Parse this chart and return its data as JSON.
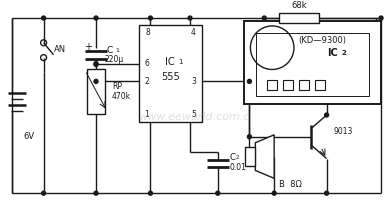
{
  "background": "#ffffff",
  "line_color": "#1a1a1a",
  "line_width": 1.0,
  "figsize": [
    3.89,
    2.11
  ],
  "dpi": 100,
  "watermark": "www.eeworld.com.c",
  "labels": {
    "AN": "AN",
    "6V": "6V",
    "C1": "C",
    "C1_sub": "1",
    "C1_val": "220μ",
    "C1_plus": "+",
    "RP": "RP",
    "RP_val": "470k",
    "IC1_label": "IC",
    "IC1_sub": "1",
    "IC1_chip": "555",
    "IC1_pin8": "8",
    "IC1_pin4": "4",
    "IC1_pin6": "6",
    "IC1_pin2": "2",
    "IC1_pin3": "3",
    "IC1_pin1": "1",
    "IC1_pin5": "5",
    "C2": "C",
    "C2_sub": "2",
    "C2_val": "0.01",
    "R68k": "68k",
    "IC2_label": "IC",
    "IC2_sub": "2",
    "IC2_chip": "(KD—9300)",
    "B": "B  8Ω",
    "Q": "9013"
  }
}
